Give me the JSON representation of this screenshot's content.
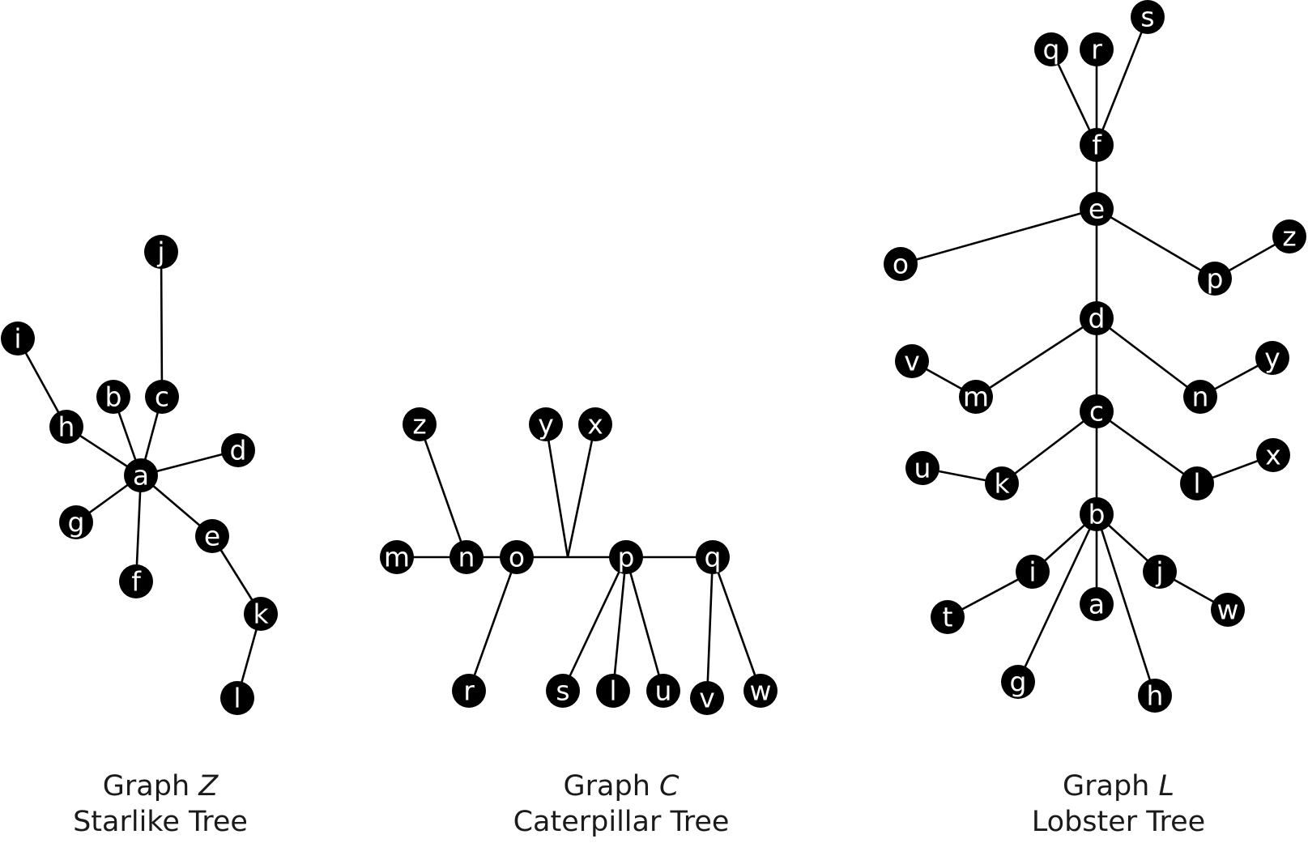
{
  "colors": {
    "node_fill": "#000000",
    "node_label": "#ffffff",
    "edge": "#000000",
    "caption_text": "#1a1a1a",
    "background": "#ffffff"
  },
  "graphs": [
    {
      "caption_prefix": "Graph ",
      "name": "Z",
      "subtitle": "Starlike Tree",
      "nodes": [
        "a",
        "b",
        "c",
        "d",
        "e",
        "f",
        "g",
        "h",
        "i",
        "j",
        "k",
        "l"
      ],
      "edges": [
        [
          "a",
          "b"
        ],
        [
          "a",
          "c"
        ],
        [
          "c",
          "j"
        ],
        [
          "a",
          "d"
        ],
        [
          "a",
          "e"
        ],
        [
          "e",
          "k"
        ],
        [
          "k",
          "l"
        ],
        [
          "a",
          "f"
        ],
        [
          "a",
          "g"
        ],
        [
          "a",
          "h"
        ],
        [
          "h",
          "i"
        ]
      ]
    },
    {
      "caption_prefix": "Graph ",
      "name": "C",
      "subtitle": "Caterpillar Tree",
      "nodes": [
        "m",
        "n",
        "o",
        "p",
        "q",
        "z",
        "y",
        "x",
        "r",
        "s",
        "l",
        "u",
        "v",
        "w"
      ],
      "edges": [
        [
          "m",
          "n"
        ],
        [
          "n",
          "o"
        ],
        [
          "o",
          "p"
        ],
        [
          "p",
          "q"
        ],
        [
          "n",
          "z"
        ],
        [
          "o",
          "r"
        ],
        [
          "o",
          "y"
        ],
        [
          "o",
          "x"
        ],
        [
          "p",
          "s"
        ],
        [
          "p",
          "l"
        ],
        [
          "p",
          "u"
        ],
        [
          "q",
          "v"
        ],
        [
          "q",
          "w"
        ]
      ]
    },
    {
      "caption_prefix": "Graph ",
      "name": "L",
      "subtitle": "Lobster Tree",
      "nodes": [
        "q",
        "r",
        "s",
        "f",
        "e",
        "o",
        "p",
        "z",
        "d",
        "v",
        "m",
        "n",
        "y",
        "c",
        "u",
        "k",
        "l",
        "x",
        "b",
        "i",
        "t",
        "a",
        "j",
        "w",
        "g",
        "h"
      ],
      "edges": [
        [
          "f",
          "q"
        ],
        [
          "f",
          "r"
        ],
        [
          "f",
          "s"
        ],
        [
          "e",
          "f"
        ],
        [
          "e",
          "o"
        ],
        [
          "e",
          "p"
        ],
        [
          "p",
          "z"
        ],
        [
          "d",
          "e"
        ],
        [
          "d",
          "m"
        ],
        [
          "m",
          "v"
        ],
        [
          "d",
          "n"
        ],
        [
          "n",
          "y"
        ],
        [
          "c",
          "d"
        ],
        [
          "c",
          "k"
        ],
        [
          "k",
          "u"
        ],
        [
          "c",
          "l"
        ],
        [
          "l",
          "x"
        ],
        [
          "b",
          "c"
        ],
        [
          "b",
          "i"
        ],
        [
          "i",
          "t"
        ],
        [
          "b",
          "a"
        ],
        [
          "b",
          "j"
        ],
        [
          "j",
          "w"
        ],
        [
          "b",
          "g"
        ],
        [
          "b",
          "h"
        ]
      ]
    }
  ]
}
